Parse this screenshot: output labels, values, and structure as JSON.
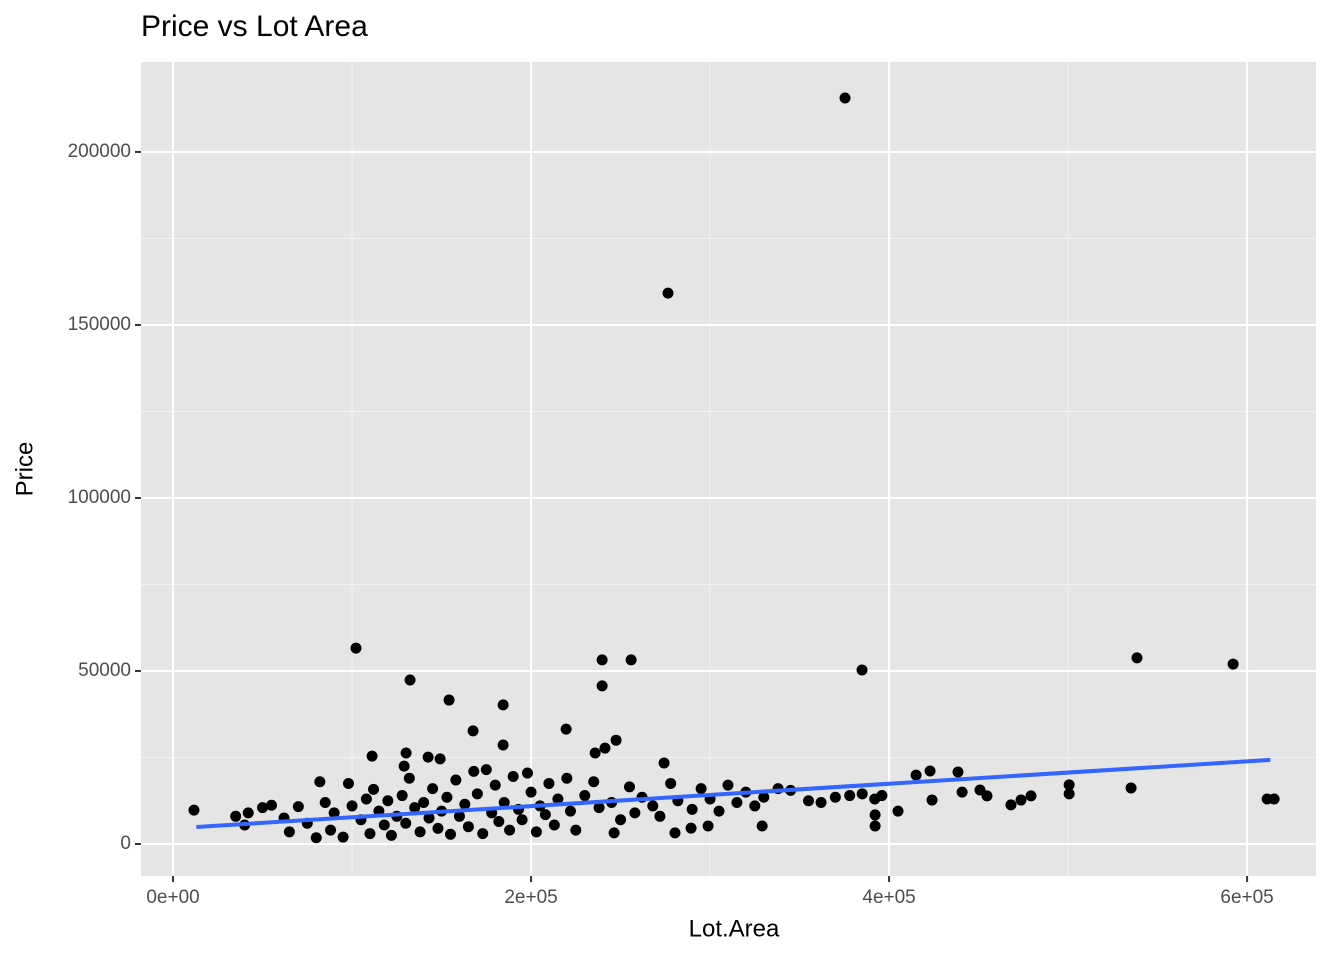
{
  "chart_data": {
    "type": "scatter",
    "title": "Price vs Lot Area",
    "x_label": "Lot.Area",
    "y_label": "Price",
    "xlim": [
      -17900,
      638500
    ],
    "ylim": [
      -9250,
      226000
    ],
    "xticks": [
      {
        "value": 0,
        "label": "0e+00"
      },
      {
        "value": 200000,
        "label": "2e+05"
      },
      {
        "value": 400000,
        "label": "4e+05"
      },
      {
        "value": 600000,
        "label": "6e+05"
      }
    ],
    "yticks": [
      0,
      50000,
      100000,
      150000,
      200000
    ],
    "grid": true,
    "series": [
      {
        "type": "scatter",
        "color": "#000000",
        "x": [
          375400,
          276500,
          102200,
          132400,
          239700,
          255900,
          239700,
          154200,
          184400,
          384900,
          538500,
          592200,
          219600,
          167600,
          247500,
          184400,
          241300,
          235800,
          130200,
          111200,
          142500,
          149200,
          274300,
          129100,
          615100,
          611200,
          535200,
          500600,
          500600,
          438500,
          422900,
          415100,
          479300,
          473700,
          468100,
          454700,
          450800,
          440800,
          424000,
          405000,
          392200,
          392200,
          329100,
          298900,
          289400,
          280400,
          246400,
          11700,
          35000,
          40000,
          42000,
          50000,
          55000,
          62000,
          65000,
          70000,
          75000,
          80000,
          82000,
          85000,
          88000,
          90000,
          95000,
          98000,
          100000,
          105000,
          108000,
          110000,
          112000,
          115000,
          118000,
          120000,
          122000,
          125000,
          128000,
          130000,
          132000,
          135000,
          138000,
          140000,
          143000,
          145000,
          148000,
          150000,
          153000,
          155000,
          158000,
          160000,
          163000,
          165000,
          168000,
          170000,
          173000,
          175000,
          178000,
          180000,
          182000,
          185000,
          188000,
          190000,
          193000,
          195000,
          198000,
          200000,
          203000,
          205000,
          208000,
          210000,
          213000,
          215000,
          220000,
          222000,
          225000,
          230000,
          235000,
          238000,
          245000,
          250000,
          255000,
          258000,
          262000,
          268000,
          272000,
          278000,
          282000,
          290000,
          295000,
          300000,
          305000,
          310000,
          315000,
          320000,
          325000,
          330000,
          338000,
          345000,
          355000,
          362000,
          370000,
          378000,
          385000,
          392000,
          396000
        ],
        "values": [
          215600,
          159200,
          56600,
          47400,
          53200,
          53200,
          45700,
          41600,
          40200,
          50300,
          53800,
          52000,
          33200,
          32700,
          30000,
          28600,
          27700,
          26300,
          26300,
          25400,
          25100,
          24600,
          23400,
          22500,
          13000,
          13000,
          16200,
          17100,
          14500,
          20800,
          21100,
          19900,
          13900,
          12700,
          11300,
          13900,
          15600,
          15000,
          12700,
          9500,
          8400,
          5200,
          5200,
          5200,
          4600,
          3200,
          3200,
          9800,
          8000,
          5500,
          9000,
          10500,
          11200,
          7500,
          3500,
          10800,
          6000,
          1800,
          18000,
          12000,
          4000,
          9000,
          2000,
          17500,
          11000,
          7000,
          13000,
          3000,
          15800,
          9500,
          5500,
          12500,
          2500,
          8000,
          14000,
          6000,
          19000,
          10500,
          3500,
          12000,
          7500,
          16000,
          4500,
          9500,
          13500,
          2800,
          18500,
          8000,
          11500,
          5000,
          21000,
          14500,
          3000,
          21500,
          9000,
          17000,
          6500,
          12000,
          4000,
          19500,
          10000,
          7000,
          20500,
          15000,
          3500,
          11000,
          8500,
          17500,
          5500,
          13000,
          19000,
          9500,
          4000,
          14000,
          18000,
          10500,
          12000,
          7000,
          16500,
          9000,
          13500,
          11000,
          8000,
          17500,
          12500,
          10000,
          16000,
          13000,
          9500,
          17000,
          12000,
          15000,
          11000,
          13500,
          16000,
          15500,
          12500,
          12000,
          13500,
          14000,
          14500,
          13000,
          14000
        ]
      },
      {
        "type": "line",
        "color": "#3366ff",
        "x": [
          13000,
          613000
        ],
        "values": [
          4900,
          24300
        ]
      }
    ]
  }
}
